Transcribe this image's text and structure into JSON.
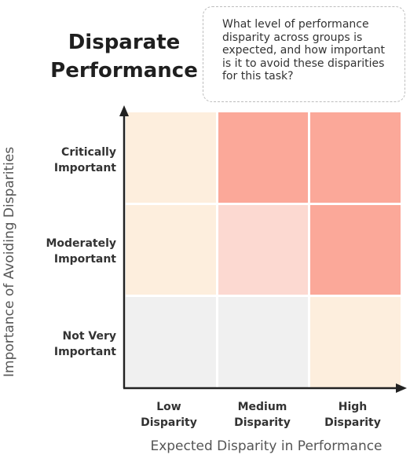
{
  "title": {
    "line1": "Disparate",
    "line2": "Performance"
  },
  "callout": {
    "lines": [
      "What level of performance",
      "disparity across groups is",
      "expected, and how important",
      "is it to avoid these disparities",
      "for this task?"
    ]
  },
  "axes": {
    "y_label": "Importance of Avoiding Disparities",
    "x_label": "Expected Disparity in Performance"
  },
  "rows": [
    {
      "line1": "Critically",
      "line2": "Important"
    },
    {
      "line1": "Moderately",
      "line2": "Important"
    },
    {
      "line1": "Not Very",
      "line2": "Important"
    }
  ],
  "columns": [
    {
      "line1": "Low",
      "line2": "Disparity"
    },
    {
      "line1": "Medium",
      "line2": "Disparity"
    },
    {
      "line1": "High",
      "line2": "Disparity"
    }
  ],
  "colors": {
    "light_cream": "#fdeedd",
    "light_pink": "#fcd9d1",
    "salmon": "#fba899",
    "gray": "#f0f0f0",
    "axis": "#222222"
  },
  "cells": [
    [
      "light_cream",
      "salmon",
      "salmon"
    ],
    [
      "light_cream",
      "light_pink",
      "salmon"
    ],
    [
      "gray",
      "gray",
      "light_cream"
    ]
  ]
}
